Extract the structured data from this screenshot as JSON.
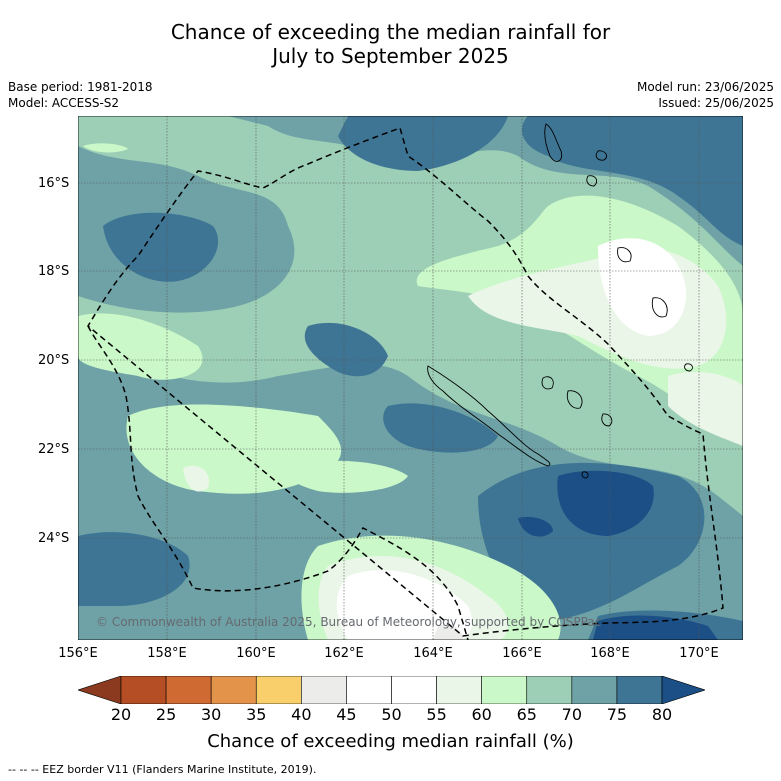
{
  "title_line1": "Chance of exceeding the median rainfall for",
  "title_line2": "July to September 2025",
  "meta_left": {
    "base_period": "Base period: 1981-2018",
    "model": "Model: ACCESS-S2"
  },
  "meta_right": {
    "model_run": "Model run: 23/06/2025",
    "issued": "Issued: 25/06/2025"
  },
  "map": {
    "lat_labels": [
      "16°S",
      "18°S",
      "20°S",
      "22°S",
      "24°S"
    ],
    "lon_labels": [
      "156°E",
      "158°E",
      "160°E",
      "162°E",
      "164°E",
      "166°E",
      "168°E",
      "170°E"
    ],
    "copyright": "© Commonwealth of Australia 2025, Bureau of Meteorology, supported by COSPPac"
  },
  "colorbar": {
    "ticks": [
      "20",
      "25",
      "30",
      "35",
      "40",
      "45",
      "50",
      "55",
      "60",
      "65",
      "70",
      "75",
      "80"
    ],
    "colors": [
      "#8b3a1f",
      "#b54e24",
      "#cf6a32",
      "#e3944a",
      "#f9cf6b",
      "#ececea",
      "#ffffff",
      "#ffffff",
      "#eaf6e8",
      "#caf8c8",
      "#9dcfb6",
      "#6ea2a6",
      "#3e7594",
      "#1b4f86"
    ],
    "title": "Chance of exceeding median rainfall (%)"
  },
  "footnote": "--  --  -- EEZ border V11 (Flanders Marine Institute, 2019)."
}
